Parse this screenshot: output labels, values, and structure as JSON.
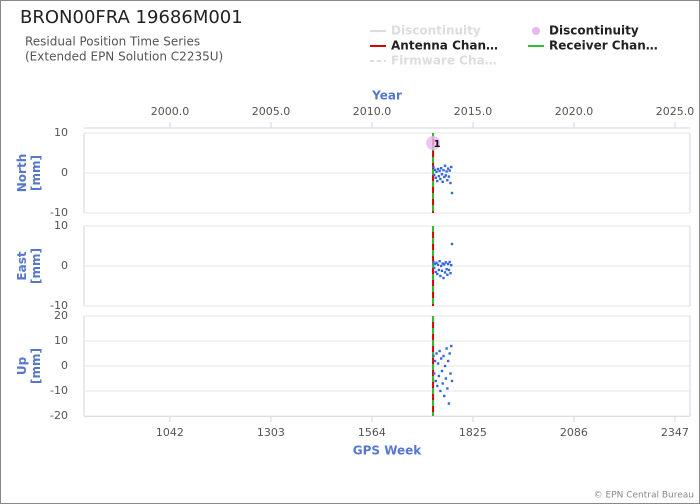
{
  "header": {
    "title": "BRON00FRA 19686M001",
    "subtitle": [
      "Residual Position Time Series",
      "(Extended EPN Solution C2235U)"
    ],
    "footer": "© EPN Central Bureau"
  },
  "legend": [
    {
      "label": "Discontinuity",
      "color": "#dddddd",
      "symbol": "line",
      "faded": true
    },
    {
      "label": "Discontinuity",
      "color": "#e8b8f0",
      "symbol": "circle",
      "faded": false
    },
    {
      "label": "Antenna Chan…",
      "color": "#dd0000",
      "symbol": "line",
      "faded": false
    },
    {
      "label": "Receiver Chan…",
      "color": "#33bb33",
      "symbol": "line",
      "faded": false
    },
    {
      "label": "Firmware Cha…",
      "color": "#dddddd",
      "symbol": "dashed",
      "faded": true
    }
  ],
  "x_axis": {
    "label": "GPS Week",
    "xlim": [
      820,
      2386
    ],
    "xticks": [
      1042,
      1303,
      1564,
      1825,
      2086,
      2347
    ]
  },
  "top_axis": {
    "label": "Year",
    "xlim": [
      1995.74,
      2025.74
    ],
    "xticks": [
      {
        "value": 2000,
        "label": "2000.0"
      },
      {
        "value": 2005,
        "label": "2005.0"
      },
      {
        "value": 2010,
        "label": "2010.0"
      },
      {
        "value": 2015,
        "label": "2015.0"
      },
      {
        "value": 2020,
        "label": "2020.0"
      },
      {
        "value": 2025,
        "label": "2025.0"
      }
    ]
  },
  "events": [
    {
      "x": 1722,
      "color": "#dd0000",
      "style": "solid"
    },
    {
      "x": 1722,
      "color": "#33bb33",
      "style": "dashed"
    }
  ],
  "chart_data": [
    {
      "type": "scatter",
      "y_label": [
        "North",
        "[mm]"
      ],
      "ylim": [
        -10,
        10
      ],
      "yticks": [
        -10,
        0,
        10
      ],
      "grid": true,
      "color": "#3366dd",
      "x": [
        1723,
        1725,
        1727,
        1729,
        1731,
        1733,
        1735,
        1737,
        1739,
        1741,
        1743,
        1745,
        1747,
        1749,
        1751,
        1753,
        1755,
        1757,
        1759,
        1761,
        1763,
        1765,
        1767,
        1769,
        1771
      ],
      "values": [
        1.5,
        -0.5,
        0.8,
        -1.2,
        0.3,
        -2.0,
        1.0,
        -0.8,
        0.5,
        -1.5,
        1.2,
        -0.3,
        -2.2,
        0.7,
        -1.0,
        1.8,
        -0.6,
        0.4,
        -1.8,
        1.1,
        -0.9,
        0.6,
        -2.5,
        1.5,
        -5.0
      ],
      "markers": [
        {
          "x": 1722,
          "y": 7.5,
          "label": "1",
          "color": "#e8b8f0"
        }
      ]
    },
    {
      "type": "scatter",
      "y_label": [
        "East",
        "[mm]"
      ],
      "ylim": [
        -10,
        10
      ],
      "yticks": [
        -10,
        0,
        10
      ],
      "grid": true,
      "color": "#3366dd",
      "x": [
        1723,
        1725,
        1727,
        1729,
        1731,
        1733,
        1735,
        1737,
        1739,
        1741,
        1743,
        1745,
        1747,
        1749,
        1751,
        1753,
        1755,
        1757,
        1759,
        1761,
        1763,
        1765,
        1767,
        1769,
        1771
      ],
      "values": [
        1.0,
        -0.5,
        0.5,
        -1.5,
        0.8,
        -2.0,
        0.3,
        -1.0,
        1.2,
        -2.5,
        0.0,
        -1.2,
        0.6,
        -3.0,
        0.4,
        -1.6,
        0.9,
        -0.8,
        -2.2,
        0.5,
        -1.0,
        1.0,
        -1.8,
        0.2,
        5.5
      ]
    },
    {
      "type": "scatter",
      "y_label": [
        "Up",
        "[mm]"
      ],
      "ylim": [
        -20,
        20
      ],
      "yticks": [
        -20,
        -10,
        0,
        10,
        20
      ],
      "grid": true,
      "color": "#3366dd",
      "x": [
        1723,
        1725,
        1727,
        1729,
        1731,
        1733,
        1735,
        1737,
        1739,
        1741,
        1743,
        1745,
        1747,
        1749,
        1751,
        1753,
        1755,
        1757,
        1759,
        1761,
        1763,
        1765,
        1767,
        1769,
        1771
      ],
      "values": [
        4,
        -3,
        2,
        -6,
        5,
        -8,
        1,
        -4,
        6,
        -10,
        3,
        -2,
        -7,
        4,
        -12,
        0,
        -5,
        7,
        -9,
        2,
        -15,
        5,
        -3,
        8,
        -6
      ]
    }
  ]
}
